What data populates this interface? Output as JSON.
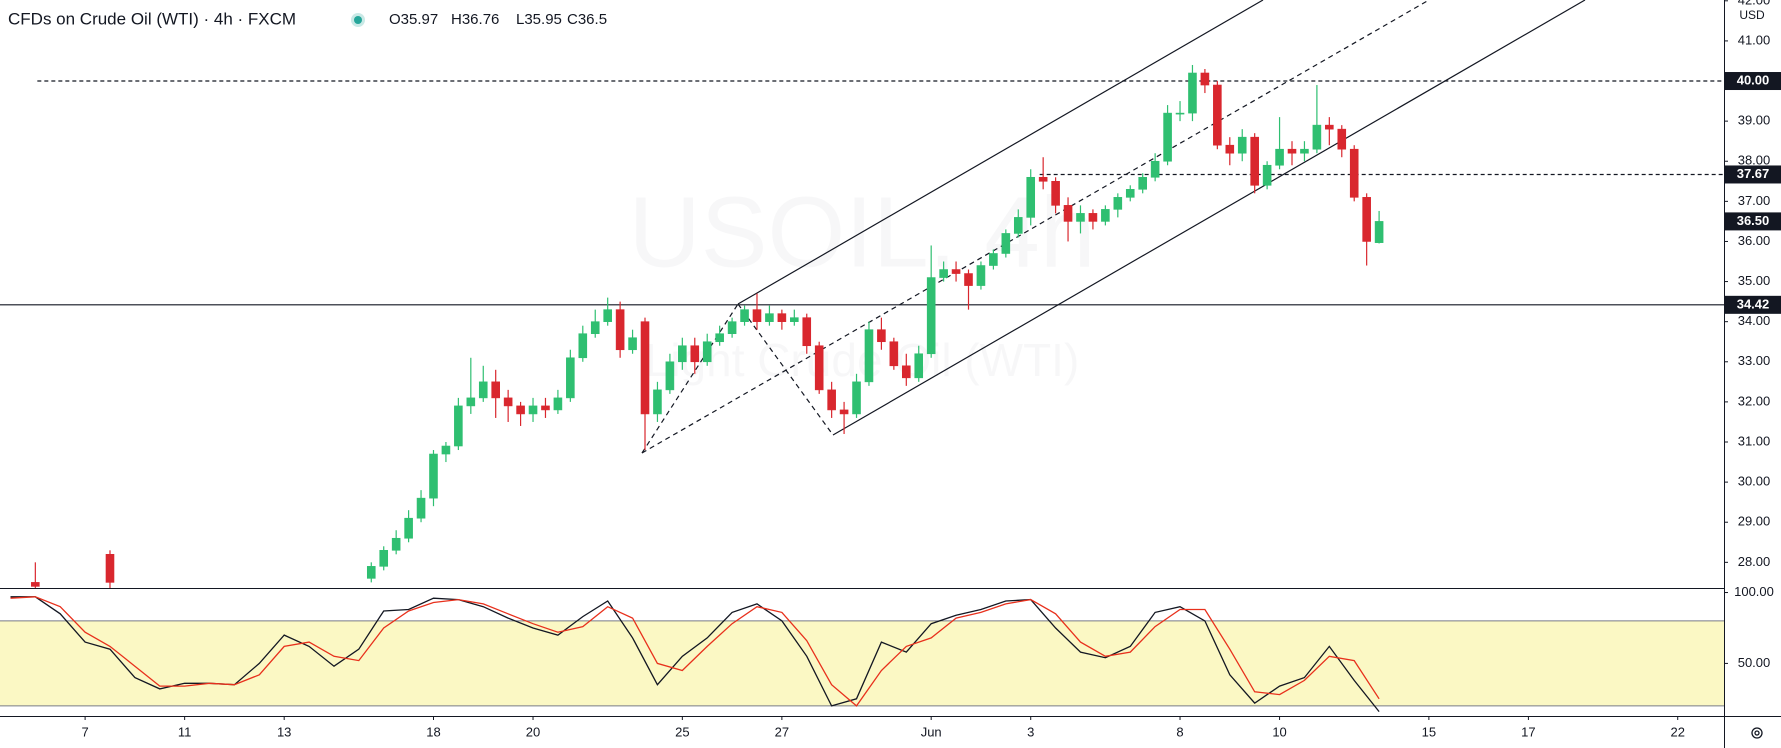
{
  "chart_data": [
    {
      "type": "candlestick",
      "title": "CFDs on Crude Oil (WTI) · 4h · FXCM",
      "ohlc": [
        {
          "label": "O",
          "value": 35.97
        },
        {
          "label": "H",
          "value": 36.76
        },
        {
          "label": "L",
          "value": 35.95
        },
        {
          "label": "C",
          "value": 36.5
        }
      ],
      "watermark": [
        "USOIL, 4h",
        "Light Crude Oil (WTI)"
      ],
      "currency": "USD",
      "up_color": "#2fbf71",
      "down_color": "#d9272e",
      "x": [
        -1,
        0.5,
        5.75,
        6,
        6.25,
        6.5,
        6.75,
        7,
        7.25,
        7.5,
        7.75,
        8,
        8.25,
        8.5,
        8.75,
        9,
        9.25,
        9.5,
        9.75,
        10,
        10.25,
        10.5,
        10.75,
        11,
        11.25,
        11.5,
        11.75,
        12,
        12.25,
        12.5,
        12.75,
        13,
        13.25,
        13.5,
        13.75,
        14,
        14.25,
        14.5,
        14.75,
        15,
        15.25,
        15.5,
        15.75,
        16,
        16.25,
        16.5,
        16.75,
        17,
        17.25,
        17.5,
        17.75,
        18,
        18.25,
        18.5,
        18.75,
        19,
        19.25,
        19.5,
        19.75,
        20,
        20.25,
        20.5,
        20.75,
        21,
        21.25,
        21.5,
        21.75,
        22,
        22.25,
        22.5,
        22.75,
        23,
        23.25,
        23.5,
        23.75,
        24,
        24.25,
        24.5,
        24.75,
        25,
        25.25,
        25.5,
        25.75,
        26
      ],
      "open": [
        27.5,
        28.2,
        27.6,
        27.9,
        28.3,
        28.6,
        29.1,
        29.6,
        30.7,
        30.9,
        31.9,
        32.1,
        32.5,
        32.1,
        31.9,
        31.7,
        31.9,
        31.8,
        32.1,
        33.1,
        33.7,
        34.0,
        34.3,
        33.3,
        34.0,
        31.7,
        32.3,
        33.0,
        33.4,
        33.0,
        33.5,
        33.7,
        34.0,
        34.3,
        34.0,
        34.2,
        34.0,
        34.1,
        33.4,
        32.3,
        31.8,
        31.7,
        32.5,
        33.8,
        33.5,
        32.9,
        32.6,
        33.2,
        35.1,
        35.3,
        35.2,
        34.9,
        35.4,
        35.7,
        36.2,
        36.6,
        37.6,
        37.5,
        36.9,
        36.5,
        36.7,
        36.5,
        36.8,
        37.1,
        37.3,
        37.6,
        38.0,
        39.2,
        39.2,
        40.2,
        39.9,
        38.4,
        38.2,
        38.6,
        37.4,
        37.9,
        38.3,
        38.2,
        38.3,
        38.9,
        38.8,
        38.3,
        37.1,
        35.97
      ],
      "high": [
        28.0,
        28.3,
        28.0,
        28.4,
        28.8,
        29.3,
        29.8,
        30.8,
        31.0,
        32.1,
        33.1,
        32.9,
        32.8,
        32.3,
        32.0,
        32.1,
        32.1,
        32.3,
        33.3,
        33.9,
        34.3,
        34.6,
        34.5,
        33.8,
        34.1,
        32.5,
        33.2,
        33.6,
        33.6,
        33.7,
        33.9,
        34.1,
        34.4,
        34.7,
        34.4,
        34.3,
        34.3,
        34.2,
        33.5,
        32.5,
        32.0,
        32.7,
        34.0,
        34.1,
        33.6,
        33.2,
        33.4,
        35.9,
        35.5,
        35.5,
        35.3,
        35.5,
        35.8,
        36.3,
        36.8,
        37.8,
        38.1,
        37.6,
        37.1,
        36.9,
        36.8,
        36.9,
        37.2,
        37.4,
        37.7,
        38.2,
        39.4,
        39.5,
        40.4,
        40.3,
        40.0,
        38.6,
        38.8,
        38.7,
        38.0,
        39.1,
        38.5,
        38.5,
        39.9,
        39.1,
        38.9,
        38.4,
        37.2,
        36.76
      ],
      "low": [
        27.0,
        27.3,
        27.5,
        27.8,
        28.2,
        28.5,
        29.0,
        29.4,
        30.5,
        30.8,
        31.7,
        32.0,
        31.6,
        31.5,
        31.4,
        31.5,
        31.6,
        31.7,
        32.0,
        33.0,
        33.6,
        33.9,
        33.1,
        33.2,
        30.8,
        31.5,
        32.2,
        32.8,
        32.7,
        32.9,
        33.4,
        33.6,
        33.9,
        33.8,
        33.9,
        33.8,
        33.9,
        33.2,
        32.2,
        31.6,
        31.2,
        31.6,
        32.4,
        33.3,
        32.8,
        32.4,
        32.5,
        33.1,
        35.0,
        35.0,
        34.3,
        34.8,
        35.3,
        35.6,
        36.1,
        36.4,
        37.3,
        36.7,
        36.0,
        36.2,
        36.3,
        36.4,
        36.6,
        37.0,
        37.2,
        37.5,
        37.9,
        39.0,
        39.0,
        39.7,
        38.3,
        37.9,
        38.0,
        37.2,
        37.3,
        37.8,
        37.9,
        38.0,
        38.2,
        38.4,
        38.1,
        37.0,
        35.4,
        35.95
      ],
      "close": [
        27.4,
        27.5,
        27.9,
        28.3,
        28.6,
        29.1,
        29.6,
        30.7,
        30.9,
        31.9,
        32.1,
        32.5,
        32.1,
        31.9,
        31.7,
        31.9,
        31.8,
        32.1,
        33.1,
        33.7,
        34.0,
        34.3,
        33.3,
        33.6,
        31.7,
        32.3,
        33.0,
        33.4,
        33.0,
        33.5,
        33.7,
        34.0,
        34.3,
        34.0,
        34.2,
        34.0,
        34.1,
        33.4,
        32.3,
        31.8,
        31.7,
        32.5,
        33.8,
        33.5,
        32.9,
        32.6,
        33.2,
        35.1,
        35.3,
        35.2,
        34.9,
        35.4,
        35.7,
        36.2,
        36.6,
        37.6,
        37.5,
        36.9,
        36.5,
        36.7,
        36.5,
        36.8,
        37.1,
        37.3,
        37.6,
        38.0,
        39.2,
        39.2,
        40.2,
        39.9,
        38.4,
        38.2,
        38.6,
        37.4,
        37.9,
        38.3,
        38.2,
        38.3,
        38.9,
        38.8,
        38.3,
        37.1,
        36.0,
        36.5
      ],
      "xlim": [
        -1.71,
        32.93
      ],
      "ylim": [
        27.36,
        42.02
      ],
      "yticks": [
        {
          "value": 28,
          "label": "28.00"
        },
        {
          "value": 29,
          "label": "29.00"
        },
        {
          "value": 30,
          "label": "30.00"
        },
        {
          "value": 31,
          "label": "31.00"
        },
        {
          "value": 32,
          "label": "32.00"
        },
        {
          "value": 33,
          "label": "33.00"
        },
        {
          "value": 34,
          "label": "34.00"
        },
        {
          "value": 35,
          "label": "35.00"
        },
        {
          "value": 36,
          "label": "36.00"
        },
        {
          "value": 37,
          "label": "37.00"
        },
        {
          "value": 38,
          "label": "38.00"
        },
        {
          "value": 39,
          "label": "39.00"
        },
        {
          "value": 40,
          "label": "40.00"
        },
        {
          "value": 41,
          "label": "41.00"
        },
        {
          "value": 42,
          "label": "42.00"
        }
      ],
      "xticks": [
        {
          "value": 0,
          "label": "7"
        },
        {
          "value": 2,
          "label": "11"
        },
        {
          "value": 4,
          "label": "13"
        },
        {
          "value": 7,
          "label": "18"
        },
        {
          "value": 9,
          "label": "20"
        },
        {
          "value": 12,
          "label": "25"
        },
        {
          "value": 14,
          "label": "27"
        },
        {
          "value": 17,
          "label": "Jun"
        },
        {
          "value": 19,
          "label": "3"
        },
        {
          "value": 22,
          "label": "8"
        },
        {
          "value": 24,
          "label": "10"
        },
        {
          "value": 27,
          "label": "15"
        },
        {
          "value": 29,
          "label": "17"
        },
        {
          "value": 32,
          "label": "22"
        }
      ],
      "levels": [
        {
          "value": 40,
          "label": "40.00",
          "style": "dashed",
          "x0": -0.96
        },
        {
          "value": 37.67,
          "label": "37.67",
          "style": "dashed",
          "x0": 19.18
        },
        {
          "value": 34.42,
          "label": "34.42",
          "style": "solid"
        }
      ],
      "last_price": {
        "value": 36.5,
        "label": "36.50"
      }
    },
    {
      "type": "line",
      "x": [
        -1.5,
        -1,
        -0.5,
        0,
        0.5,
        1,
        1.5,
        2,
        2.5,
        3,
        3.5,
        4,
        4.5,
        5,
        5.5,
        6,
        6.5,
        7,
        7.5,
        8,
        8.5,
        9,
        9.5,
        10,
        10.5,
        11,
        11.5,
        12,
        12.5,
        13,
        13.5,
        14,
        14.5,
        15,
        15.5,
        16,
        16.5,
        17,
        17.5,
        18,
        18.5,
        19,
        19.5,
        20,
        20.5,
        21,
        21.5,
        22,
        22.5,
        23,
        23.5,
        24,
        24.5,
        25,
        25.5,
        26
      ],
      "series": [
        {
          "color": "#131722",
          "values": [
            97,
            97,
            85,
            65,
            60,
            40,
            32,
            36,
            36,
            35,
            50,
            70,
            62,
            48,
            60,
            87,
            88,
            96,
            95,
            90,
            82,
            75,
            70,
            83,
            94,
            68,
            35,
            55,
            68,
            86,
            92,
            80,
            55,
            20,
            25,
            65,
            58,
            78,
            84,
            88,
            94,
            95,
            75,
            58,
            54,
            62,
            86,
            90,
            80,
            42,
            22,
            34,
            40,
            62,
            38,
            16
          ]
        },
        {
          "color": "#e8301c",
          "values": [
            96,
            97,
            90,
            72,
            62,
            48,
            34,
            34,
            36,
            35,
            42,
            62,
            65,
            55,
            52,
            75,
            87,
            93,
            95,
            92,
            85,
            78,
            72,
            76,
            90,
            82,
            50,
            45,
            62,
            78,
            90,
            86,
            66,
            35,
            20,
            45,
            62,
            68,
            82,
            86,
            92,
            95,
            85,
            65,
            55,
            58,
            76,
            88,
            88,
            60,
            30,
            28,
            38,
            55,
            52,
            25
          ]
        }
      ],
      "ylim": [
        12.9,
        103.2
      ],
      "yticks": [
        {
          "value": 50,
          "label": "50.00"
        },
        {
          "value": 100,
          "label": "100.00"
        }
      ],
      "band": [
        20,
        80
      ],
      "band_color": "#fbf8c4"
    }
  ]
}
